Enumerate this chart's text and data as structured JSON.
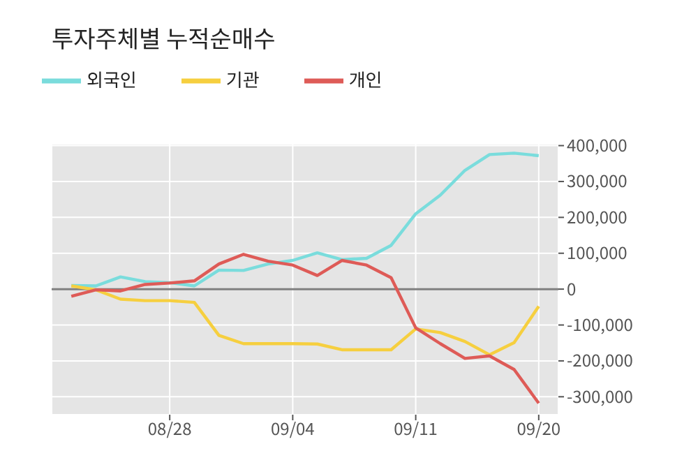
{
  "chart_data": {
    "type": "line",
    "title": "투자주체별 누적순매수",
    "categories": [
      null,
      null,
      null,
      null,
      "08/28",
      null,
      null,
      null,
      null,
      "09/04",
      null,
      null,
      null,
      null,
      "09/11",
      null,
      null,
      null,
      null,
      "09/20"
    ],
    "series": [
      {
        "name": "외국인",
        "color": "#7adcdc",
        "values": [
          10000,
          9000,
          34000,
          21000,
          18000,
          9000,
          53000,
          52000,
          70000,
          80000,
          101000,
          82000,
          86000,
          122000,
          210000,
          262000,
          331000,
          375000,
          379000,
          372000
        ]
      },
      {
        "name": "기관",
        "color": "#f6cf3f",
        "values": [
          9000,
          -2000,
          -28000,
          -32000,
          -32000,
          -37000,
          -129000,
          -152000,
          -152000,
          -152000,
          -153000,
          -169000,
          -169000,
          -169000,
          -111000,
          -121000,
          -146000,
          -183000,
          -149000,
          -48000
        ]
      },
      {
        "name": "개인",
        "color": "#de5b57",
        "values": [
          -20000,
          -2000,
          -5000,
          13000,
          17000,
          23000,
          70000,
          97000,
          78000,
          67000,
          38000,
          80000,
          67000,
          32000,
          -108000,
          -152000,
          -193000,
          -186000,
          -224000,
          -318000
        ]
      }
    ],
    "ylim": [
      -350000,
      405000
    ],
    "yticks": [
      {
        "value": -300000,
        "label": "-300,000"
      },
      {
        "value": -200000,
        "label": "-200,000"
      },
      {
        "value": -100000,
        "label": "-100,000"
      },
      0,
      {
        "value": 100000,
        "label": "100,000"
      },
      {
        "value": 200000,
        "label": "200,000"
      },
      {
        "value": 300000,
        "label": "300,000"
      },
      {
        "value": 400000,
        "label": "400,000"
      }
    ],
    "ref_lines": [
      {
        "axis": "y",
        "value": 0,
        "color": "#808080"
      }
    ],
    "grid": true,
    "legend": "top left",
    "marker": "none",
    "line_style": "solid"
  }
}
